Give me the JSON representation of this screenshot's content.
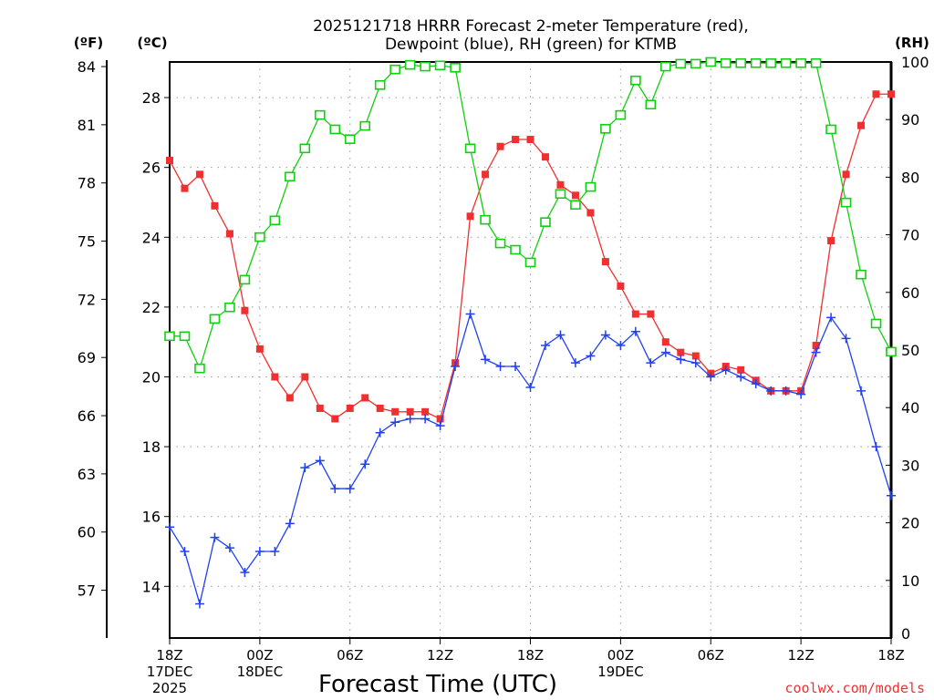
{
  "chart_data": {
    "type": "line",
    "title_line1": "2025121718 HRRR Forecast 2-meter Temperature (red),",
    "title_line2": "Dewpoint (blue), RH (green) for KTMB",
    "xlabel": "Forecast Time (UTC)",
    "unit_f": "(ºF)",
    "unit_c": "(ºC)",
    "unit_rh": "(RH)",
    "credit": "coolwx.com/models",
    "x_hours": [
      0,
      1,
      2,
      3,
      4,
      5,
      6,
      7,
      8,
      9,
      10,
      11,
      12,
      13,
      14,
      15,
      16,
      17,
      18,
      19,
      20,
      21,
      22,
      23,
      24,
      25,
      26,
      27,
      28,
      29,
      30,
      31,
      32,
      33,
      34,
      35,
      36,
      37,
      38,
      39,
      40,
      41,
      42,
      43,
      44,
      45,
      46,
      47,
      48
    ],
    "x_ticks": [
      {
        "hour": 0,
        "label": "18Z",
        "sub1": "17DEC",
        "sub2": "2025"
      },
      {
        "hour": 6,
        "label": "00Z",
        "sub1": "18DEC",
        "sub2": ""
      },
      {
        "hour": 12,
        "label": "06Z",
        "sub1": "",
        "sub2": ""
      },
      {
        "hour": 18,
        "label": "12Z",
        "sub1": "",
        "sub2": ""
      },
      {
        "hour": 24,
        "label": "18Z",
        "sub1": "",
        "sub2": ""
      },
      {
        "hour": 30,
        "label": "00Z",
        "sub1": "19DEC",
        "sub2": ""
      },
      {
        "hour": 36,
        "label": "06Z",
        "sub1": "",
        "sub2": ""
      },
      {
        "hour": 42,
        "label": "12Z",
        "sub1": "",
        "sub2": ""
      },
      {
        "hour": 48,
        "label": "18Z",
        "sub1": "",
        "sub2": ""
      }
    ],
    "xlim_hours": [
      0,
      48
    ],
    "ylim_c": [
      12.52,
      29.02
    ],
    "ylim_rh": [
      0,
      100
    ],
    "c_ticks": [
      "14",
      "16",
      "18",
      "20",
      "22",
      "24",
      "26",
      "28"
    ],
    "f_ticks": [
      "57",
      "60",
      "63",
      "66",
      "69",
      "72",
      "75",
      "78",
      "81",
      "84"
    ],
    "rh_ticks": [
      "0",
      "10",
      "20",
      "30",
      "40",
      "50",
      "60",
      "70",
      "80",
      "90",
      "100"
    ],
    "grid": true,
    "series": [
      {
        "name": "Temperature",
        "axis": "c",
        "color": "#f03030",
        "marker": "filled-square",
        "values": [
          26.2,
          25.4,
          25.8,
          24.9,
          24.1,
          21.9,
          20.8,
          20.0,
          19.4,
          20.0,
          19.1,
          18.8,
          19.1,
          19.4,
          19.1,
          19.0,
          19.0,
          19.0,
          18.8,
          20.4,
          24.6,
          25.8,
          26.6,
          26.8,
          26.8,
          26.3,
          25.5,
          25.2,
          24.7,
          23.3,
          22.6,
          21.8,
          21.8,
          21.0,
          20.7,
          20.6,
          20.1,
          20.3,
          20.2,
          19.9,
          19.6,
          19.6,
          19.6,
          20.9,
          23.9,
          25.8,
          27.2,
          28.1,
          28.1
        ]
      },
      {
        "name": "Dewpoint",
        "axis": "c",
        "color": "#2040f0",
        "marker": "plus",
        "values": [
          15.7,
          15.0,
          13.5,
          15.4,
          15.1,
          14.4,
          15.0,
          15.0,
          15.8,
          17.4,
          17.6,
          16.8,
          16.8,
          17.5,
          18.4,
          18.7,
          18.8,
          18.8,
          18.6,
          20.3,
          21.8,
          20.5,
          20.3,
          20.3,
          19.7,
          20.9,
          21.2,
          20.4,
          20.6,
          21.2,
          20.9,
          21.3,
          20.4,
          20.7,
          20.5,
          20.4,
          20.0,
          20.2,
          20.0,
          19.8,
          19.6,
          19.6,
          19.5,
          20.7,
          21.7,
          21.1,
          19.6,
          18.0,
          16.6
        ]
      },
      {
        "name": "RH",
        "axis": "rh",
        "color": "#10d010",
        "marker": "open-square",
        "values": [
          52.4,
          52.4,
          46.8,
          55.4,
          57.4,
          62.2,
          69.6,
          72.5,
          80.1,
          85.0,
          90.8,
          88.3,
          86.6,
          88.9,
          96.0,
          98.7,
          99.5,
          99.2,
          99.4,
          99.0,
          85.0,
          72.6,
          68.5,
          67.4,
          65.2,
          72.2,
          77.1,
          75.2,
          78.3,
          88.4,
          90.8,
          96.8,
          92.6,
          99.2,
          99.7,
          99.7,
          100,
          99.8,
          99.8,
          99.8,
          99.8,
          99.8,
          99.8,
          99.8,
          88.3,
          75.6,
          63.1,
          54.6,
          49.7
        ]
      }
    ]
  }
}
